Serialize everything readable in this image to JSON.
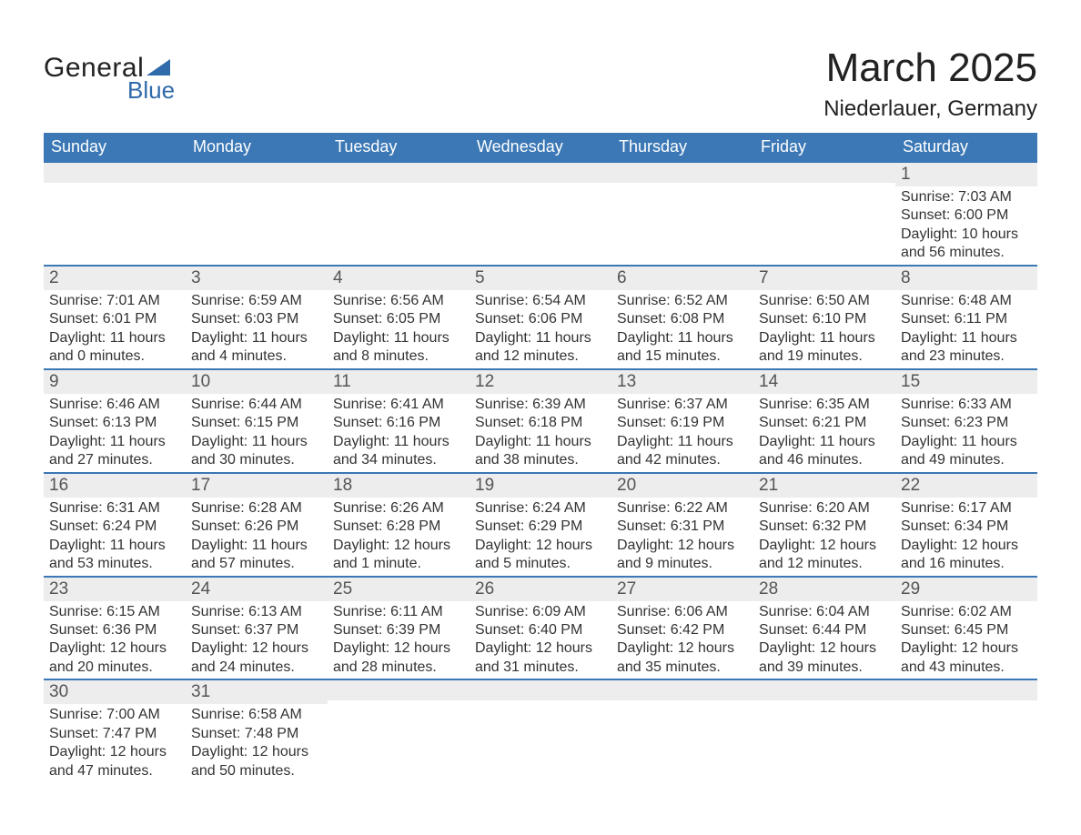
{
  "logo": {
    "main": "General",
    "sub": "Blue"
  },
  "title": "March 2025",
  "location": "Niederlauer, Germany",
  "colors": {
    "header_bg": "#3b78b5",
    "header_text": "#ffffff",
    "daynum_bg": "#ededed",
    "row_border": "#3b78b5",
    "body_text": "#333333",
    "logo_accent": "#2f6aab"
  },
  "weekdays": [
    "Sunday",
    "Monday",
    "Tuesday",
    "Wednesday",
    "Thursday",
    "Friday",
    "Saturday"
  ],
  "weeks": [
    [
      null,
      null,
      null,
      null,
      null,
      null,
      {
        "day": "1",
        "sunrise": "Sunrise: 7:03 AM",
        "sunset": "Sunset: 6:00 PM",
        "daylight1": "Daylight: 10 hours",
        "daylight2": "and 56 minutes."
      }
    ],
    [
      {
        "day": "2",
        "sunrise": "Sunrise: 7:01 AM",
        "sunset": "Sunset: 6:01 PM",
        "daylight1": "Daylight: 11 hours",
        "daylight2": "and 0 minutes."
      },
      {
        "day": "3",
        "sunrise": "Sunrise: 6:59 AM",
        "sunset": "Sunset: 6:03 PM",
        "daylight1": "Daylight: 11 hours",
        "daylight2": "and 4 minutes."
      },
      {
        "day": "4",
        "sunrise": "Sunrise: 6:56 AM",
        "sunset": "Sunset: 6:05 PM",
        "daylight1": "Daylight: 11 hours",
        "daylight2": "and 8 minutes."
      },
      {
        "day": "5",
        "sunrise": "Sunrise: 6:54 AM",
        "sunset": "Sunset: 6:06 PM",
        "daylight1": "Daylight: 11 hours",
        "daylight2": "and 12 minutes."
      },
      {
        "day": "6",
        "sunrise": "Sunrise: 6:52 AM",
        "sunset": "Sunset: 6:08 PM",
        "daylight1": "Daylight: 11 hours",
        "daylight2": "and 15 minutes."
      },
      {
        "day": "7",
        "sunrise": "Sunrise: 6:50 AM",
        "sunset": "Sunset: 6:10 PM",
        "daylight1": "Daylight: 11 hours",
        "daylight2": "and 19 minutes."
      },
      {
        "day": "8",
        "sunrise": "Sunrise: 6:48 AM",
        "sunset": "Sunset: 6:11 PM",
        "daylight1": "Daylight: 11 hours",
        "daylight2": "and 23 minutes."
      }
    ],
    [
      {
        "day": "9",
        "sunrise": "Sunrise: 6:46 AM",
        "sunset": "Sunset: 6:13 PM",
        "daylight1": "Daylight: 11 hours",
        "daylight2": "and 27 minutes."
      },
      {
        "day": "10",
        "sunrise": "Sunrise: 6:44 AM",
        "sunset": "Sunset: 6:15 PM",
        "daylight1": "Daylight: 11 hours",
        "daylight2": "and 30 minutes."
      },
      {
        "day": "11",
        "sunrise": "Sunrise: 6:41 AM",
        "sunset": "Sunset: 6:16 PM",
        "daylight1": "Daylight: 11 hours",
        "daylight2": "and 34 minutes."
      },
      {
        "day": "12",
        "sunrise": "Sunrise: 6:39 AM",
        "sunset": "Sunset: 6:18 PM",
        "daylight1": "Daylight: 11 hours",
        "daylight2": "and 38 minutes."
      },
      {
        "day": "13",
        "sunrise": "Sunrise: 6:37 AM",
        "sunset": "Sunset: 6:19 PM",
        "daylight1": "Daylight: 11 hours",
        "daylight2": "and 42 minutes."
      },
      {
        "day": "14",
        "sunrise": "Sunrise: 6:35 AM",
        "sunset": "Sunset: 6:21 PM",
        "daylight1": "Daylight: 11 hours",
        "daylight2": "and 46 minutes."
      },
      {
        "day": "15",
        "sunrise": "Sunrise: 6:33 AM",
        "sunset": "Sunset: 6:23 PM",
        "daylight1": "Daylight: 11 hours",
        "daylight2": "and 49 minutes."
      }
    ],
    [
      {
        "day": "16",
        "sunrise": "Sunrise: 6:31 AM",
        "sunset": "Sunset: 6:24 PM",
        "daylight1": "Daylight: 11 hours",
        "daylight2": "and 53 minutes."
      },
      {
        "day": "17",
        "sunrise": "Sunrise: 6:28 AM",
        "sunset": "Sunset: 6:26 PM",
        "daylight1": "Daylight: 11 hours",
        "daylight2": "and 57 minutes."
      },
      {
        "day": "18",
        "sunrise": "Sunrise: 6:26 AM",
        "sunset": "Sunset: 6:28 PM",
        "daylight1": "Daylight: 12 hours",
        "daylight2": "and 1 minute."
      },
      {
        "day": "19",
        "sunrise": "Sunrise: 6:24 AM",
        "sunset": "Sunset: 6:29 PM",
        "daylight1": "Daylight: 12 hours",
        "daylight2": "and 5 minutes."
      },
      {
        "day": "20",
        "sunrise": "Sunrise: 6:22 AM",
        "sunset": "Sunset: 6:31 PM",
        "daylight1": "Daylight: 12 hours",
        "daylight2": "and 9 minutes."
      },
      {
        "day": "21",
        "sunrise": "Sunrise: 6:20 AM",
        "sunset": "Sunset: 6:32 PM",
        "daylight1": "Daylight: 12 hours",
        "daylight2": "and 12 minutes."
      },
      {
        "day": "22",
        "sunrise": "Sunrise: 6:17 AM",
        "sunset": "Sunset: 6:34 PM",
        "daylight1": "Daylight: 12 hours",
        "daylight2": "and 16 minutes."
      }
    ],
    [
      {
        "day": "23",
        "sunrise": "Sunrise: 6:15 AM",
        "sunset": "Sunset: 6:36 PM",
        "daylight1": "Daylight: 12 hours",
        "daylight2": "and 20 minutes."
      },
      {
        "day": "24",
        "sunrise": "Sunrise: 6:13 AM",
        "sunset": "Sunset: 6:37 PM",
        "daylight1": "Daylight: 12 hours",
        "daylight2": "and 24 minutes."
      },
      {
        "day": "25",
        "sunrise": "Sunrise: 6:11 AM",
        "sunset": "Sunset: 6:39 PM",
        "daylight1": "Daylight: 12 hours",
        "daylight2": "and 28 minutes."
      },
      {
        "day": "26",
        "sunrise": "Sunrise: 6:09 AM",
        "sunset": "Sunset: 6:40 PM",
        "daylight1": "Daylight: 12 hours",
        "daylight2": "and 31 minutes."
      },
      {
        "day": "27",
        "sunrise": "Sunrise: 6:06 AM",
        "sunset": "Sunset: 6:42 PM",
        "daylight1": "Daylight: 12 hours",
        "daylight2": "and 35 minutes."
      },
      {
        "day": "28",
        "sunrise": "Sunrise: 6:04 AM",
        "sunset": "Sunset: 6:44 PM",
        "daylight1": "Daylight: 12 hours",
        "daylight2": "and 39 minutes."
      },
      {
        "day": "29",
        "sunrise": "Sunrise: 6:02 AM",
        "sunset": "Sunset: 6:45 PM",
        "daylight1": "Daylight: 12 hours",
        "daylight2": "and 43 minutes."
      }
    ],
    [
      {
        "day": "30",
        "sunrise": "Sunrise: 7:00 AM",
        "sunset": "Sunset: 7:47 PM",
        "daylight1": "Daylight: 12 hours",
        "daylight2": "and 47 minutes."
      },
      {
        "day": "31",
        "sunrise": "Sunrise: 6:58 AM",
        "sunset": "Sunset: 7:48 PM",
        "daylight1": "Daylight: 12 hours",
        "daylight2": "and 50 minutes."
      },
      null,
      null,
      null,
      null,
      null
    ]
  ]
}
